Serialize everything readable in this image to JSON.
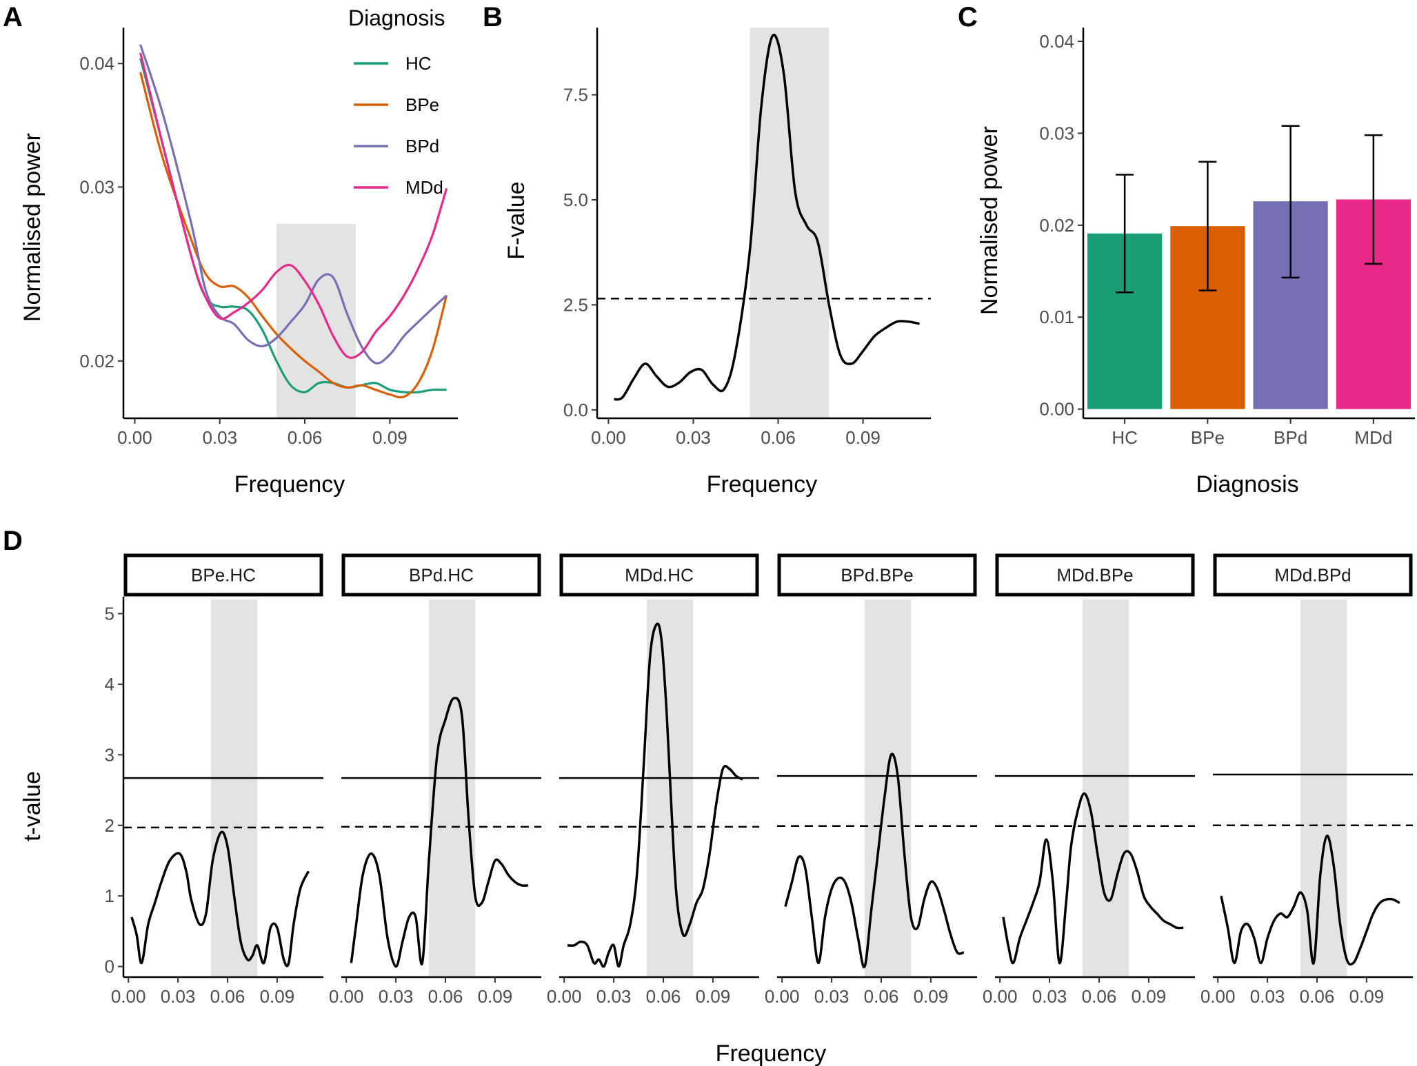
{
  "panels": {
    "A": {
      "letter": "A",
      "chart_data": {
        "type": "line",
        "xlabel": "Frequency",
        "ylabel": "Normalised power",
        "xlim": [
          -0.004,
          0.114
        ],
        "ylim": [
          0.0175,
          0.0435
        ],
        "y_scale": "log",
        "xticks": [
          0.0,
          0.03,
          0.06,
          0.09
        ],
        "xtick_labels": [
          "0.00",
          "0.03",
          "0.06",
          "0.09"
        ],
        "yticks": [
          0.02,
          0.03,
          0.04
        ],
        "ytick_labels": [
          "0.02",
          "0.03",
          "0.04"
        ],
        "highlight_band": [
          0.05,
          0.078
        ],
        "legend": {
          "title": "Diagnosis",
          "placement": "top-right"
        },
        "series": [
          {
            "name": "HC",
            "color": "#1b9e77",
            "x": [
              0.002,
              0.01,
              0.02,
              0.025,
              0.03,
              0.035,
              0.04,
              0.045,
              0.05,
              0.055,
              0.06,
              0.065,
              0.07,
              0.075,
              0.08,
              0.085,
              0.09,
              0.095,
              0.1,
              0.105,
              0.11
            ],
            "y": [
              0.0405,
              0.033,
              0.0255,
              0.0232,
              0.0227,
              0.0227,
              0.0225,
              0.0215,
              0.02,
              0.0189,
              0.0186,
              0.019,
              0.019,
              0.0188,
              0.0189,
              0.019,
              0.0187,
              0.0186,
              0.0186,
              0.0187,
              0.0187
            ]
          },
          {
            "name": "BPe",
            "color": "#d95f02",
            "x": [
              0.002,
              0.01,
              0.02,
              0.025,
              0.03,
              0.035,
              0.04,
              0.045,
              0.05,
              0.055,
              0.06,
              0.065,
              0.07,
              0.075,
              0.08,
              0.085,
              0.09,
              0.095,
              0.1,
              0.105,
              0.11
            ],
            "y": [
              0.0392,
              0.032,
              0.0265,
              0.0245,
              0.0238,
              0.0238,
              0.0232,
              0.0222,
              0.0213,
              0.0206,
              0.02,
              0.0195,
              0.019,
              0.0188,
              0.0189,
              0.0187,
              0.0185,
              0.0184,
              0.019,
              0.0205,
              0.0233
            ]
          },
          {
            "name": "BPd",
            "color": "#7570b3",
            "x": [
              0.002,
              0.01,
              0.02,
              0.025,
              0.03,
              0.035,
              0.04,
              0.045,
              0.05,
              0.055,
              0.06,
              0.065,
              0.07,
              0.075,
              0.08,
              0.085,
              0.09,
              0.095,
              0.1,
              0.105,
              0.11
            ],
            "y": [
              0.0418,
              0.0355,
              0.0275,
              0.0236,
              0.0222,
              0.0218,
              0.021,
              0.0207,
              0.0211,
              0.0219,
              0.0228,
              0.0242,
              0.0243,
              0.0223,
              0.0207,
              0.0199,
              0.0203,
              0.0212,
              0.0219,
              0.0226,
              0.0233
            ]
          },
          {
            "name": "MDd",
            "color": "#e7298a",
            "x": [
              0.002,
              0.01,
              0.02,
              0.025,
              0.03,
              0.035,
              0.04,
              0.045,
              0.05,
              0.055,
              0.06,
              0.065,
              0.07,
              0.075,
              0.08,
              0.085,
              0.09,
              0.095,
              0.1,
              0.105,
              0.11
            ],
            "y": [
              0.041,
              0.033,
              0.0255,
              0.0232,
              0.0221,
              0.0224,
              0.0229,
              0.0236,
              0.0246,
              0.025,
              0.0241,
              0.0228,
              0.0212,
              0.0202,
              0.0204,
              0.0214,
              0.0222,
              0.0233,
              0.0248,
              0.0268,
              0.0299
            ]
          }
        ]
      }
    },
    "B": {
      "letter": "B",
      "chart_data": {
        "type": "line",
        "xlabel": "Frequency",
        "ylabel": "F-value",
        "xlim": [
          -0.004,
          0.114
        ],
        "ylim": [
          -0.2,
          9.1
        ],
        "xticks": [
          0.0,
          0.03,
          0.06,
          0.09
        ],
        "xtick_labels": [
          "0.00",
          "0.03",
          "0.06",
          "0.09"
        ],
        "yticks": [
          0.0,
          2.5,
          5.0,
          7.5
        ],
        "ytick_labels": [
          "0.0",
          "2.5",
          "5.0",
          "7.5"
        ],
        "highlight_band": [
          0.05,
          0.078
        ],
        "threshold": 2.65,
        "series": [
          {
            "color": "#000000",
            "x": [
              0.002,
              0.005,
              0.009,
              0.013,
              0.017,
              0.021,
              0.025,
              0.029,
              0.033,
              0.037,
              0.041,
              0.045,
              0.05,
              0.054,
              0.058,
              0.062,
              0.066,
              0.07,
              0.074,
              0.078,
              0.082,
              0.086,
              0.09,
              0.094,
              0.098,
              0.102,
              0.106,
              0.11
            ],
            "y": [
              0.25,
              0.3,
              0.75,
              1.1,
              0.8,
              0.55,
              0.65,
              0.9,
              0.95,
              0.6,
              0.5,
              1.4,
              3.8,
              7.2,
              8.9,
              8.0,
              5.2,
              4.4,
              4.0,
              2.5,
              1.3,
              1.1,
              1.4,
              1.75,
              1.95,
              2.1,
              2.1,
              2.05
            ]
          }
        ]
      }
    },
    "C": {
      "letter": "C",
      "chart_data": {
        "type": "bar",
        "xlabel": "Diagnosis",
        "ylabel": "Normalised power",
        "categories": [
          "HC",
          "BPe",
          "BPd",
          "MDd"
        ],
        "values": [
          0.0191,
          0.0199,
          0.0226,
          0.0228
        ],
        "error_low": [
          0.0127,
          0.0129,
          0.0143,
          0.0158
        ],
        "error_high": [
          0.0255,
          0.0269,
          0.0308,
          0.0298
        ],
        "colors": [
          "#1b9e77",
          "#d95f02",
          "#7570b3",
          "#e7298a"
        ],
        "ylim": [
          -0.001,
          0.0415
        ],
        "yticks": [
          0.0,
          0.01,
          0.02,
          0.03,
          0.04
        ],
        "ytick_labels": [
          "0.00",
          "0.01",
          "0.02",
          "0.03",
          "0.04"
        ]
      }
    },
    "D": {
      "letter": "D",
      "xlabel": "Frequency",
      "ylabel": "t-value",
      "xticks": [
        0.0,
        0.03,
        0.06,
        0.09
      ],
      "xtick_labels": [
        "0.00",
        "0.03",
        "0.06",
        "0.09"
      ],
      "yticks": [
        0,
        1,
        2,
        3,
        4,
        5
      ],
      "ytick_labels": [
        "0",
        "1",
        "2",
        "3",
        "4",
        "5"
      ],
      "xlim": [
        -0.003,
        0.118
      ],
      "ylim": [
        -0.15,
        5.2
      ],
      "highlight_band": [
        0.05,
        0.078
      ],
      "chart_data": [
        {
          "type": "line",
          "facet": "BPe.HC",
          "solid_threshold": 2.67,
          "dashed_threshold": 1.97,
          "x": [
            0.002,
            0.005,
            0.008,
            0.012,
            0.016,
            0.02,
            0.025,
            0.031,
            0.035,
            0.038,
            0.043,
            0.047,
            0.051,
            0.056,
            0.06,
            0.064,
            0.068,
            0.072,
            0.075,
            0.078,
            0.082,
            0.086,
            0.09,
            0.094,
            0.097,
            0.1,
            0.104,
            0.109
          ],
          "y": [
            0.7,
            0.45,
            0.05,
            0.6,
            0.9,
            1.2,
            1.5,
            1.6,
            1.35,
            0.95,
            0.6,
            0.75,
            1.5,
            1.9,
            1.7,
            1.0,
            0.35,
            0.1,
            0.15,
            0.3,
            0.05,
            0.55,
            0.55,
            0.1,
            0.05,
            0.6,
            1.1,
            1.35
          ]
        },
        {
          "type": "line",
          "facet": "BPd.HC",
          "solid_threshold": 2.67,
          "dashed_threshold": 1.98,
          "x": [
            0.003,
            0.006,
            0.01,
            0.015,
            0.02,
            0.025,
            0.03,
            0.034,
            0.038,
            0.042,
            0.046,
            0.05,
            0.055,
            0.06,
            0.065,
            0.07,
            0.074,
            0.078,
            0.082,
            0.086,
            0.09,
            0.094,
            0.098,
            0.102,
            0.106,
            0.11
          ],
          "y": [
            0.05,
            0.6,
            1.3,
            1.6,
            1.3,
            0.4,
            0.0,
            0.35,
            0.7,
            0.7,
            0.05,
            1.5,
            3.0,
            3.5,
            3.8,
            3.55,
            2.1,
            1.0,
            0.9,
            1.2,
            1.5,
            1.45,
            1.3,
            1.2,
            1.15,
            1.15
          ]
        },
        {
          "type": "line",
          "facet": "MDd.HC",
          "solid_threshold": 2.67,
          "dashed_threshold": 1.98,
          "x": [
            0.002,
            0.006,
            0.01,
            0.014,
            0.018,
            0.021,
            0.024,
            0.027,
            0.03,
            0.033,
            0.036,
            0.04,
            0.044,
            0.048,
            0.052,
            0.056,
            0.059,
            0.062,
            0.065,
            0.068,
            0.072,
            0.076,
            0.08,
            0.084,
            0.088,
            0.092,
            0.096,
            0.1,
            0.104,
            0.108
          ],
          "y": [
            0.3,
            0.3,
            0.35,
            0.3,
            0.05,
            0.1,
            0.0,
            0.2,
            0.3,
            0.0,
            0.3,
            0.6,
            1.3,
            2.8,
            4.4,
            4.85,
            4.6,
            3.6,
            2.2,
            1.0,
            0.45,
            0.6,
            0.9,
            1.1,
            1.6,
            2.3,
            2.8,
            2.8,
            2.7,
            2.65
          ]
        },
        {
          "type": "line",
          "facet": "BPd.BPe",
          "solid_threshold": 2.7,
          "dashed_threshold": 1.99,
          "x": [
            0.002,
            0.006,
            0.01,
            0.014,
            0.018,
            0.022,
            0.026,
            0.03,
            0.034,
            0.038,
            0.042,
            0.046,
            0.05,
            0.054,
            0.058,
            0.062,
            0.066,
            0.07,
            0.074,
            0.078,
            0.082,
            0.086,
            0.09,
            0.094,
            0.098,
            0.102,
            0.106,
            0.11
          ],
          "y": [
            0.85,
            1.2,
            1.55,
            1.4,
            0.7,
            0.05,
            0.7,
            1.1,
            1.25,
            1.2,
            0.9,
            0.4,
            0.0,
            0.8,
            1.6,
            2.4,
            3.0,
            2.7,
            1.6,
            0.7,
            0.55,
            0.95,
            1.2,
            1.1,
            0.8,
            0.45,
            0.2,
            0.2
          ]
        },
        {
          "type": "line",
          "facet": "MDd.BPe",
          "solid_threshold": 2.7,
          "dashed_threshold": 1.99,
          "x": [
            0.002,
            0.005,
            0.008,
            0.012,
            0.016,
            0.02,
            0.024,
            0.028,
            0.032,
            0.036,
            0.04,
            0.043,
            0.047,
            0.051,
            0.055,
            0.059,
            0.063,
            0.067,
            0.071,
            0.075,
            0.079,
            0.083,
            0.087,
            0.091,
            0.095,
            0.099,
            0.103,
            0.107,
            0.111
          ],
          "y": [
            0.7,
            0.3,
            0.05,
            0.4,
            0.65,
            0.9,
            1.2,
            1.8,
            1.2,
            0.05,
            0.9,
            1.7,
            2.2,
            2.45,
            2.2,
            1.6,
            1.05,
            0.95,
            1.3,
            1.6,
            1.6,
            1.35,
            1.0,
            0.85,
            0.75,
            0.65,
            0.6,
            0.55,
            0.55
          ]
        },
        {
          "type": "line",
          "facet": "MDd.BPd",
          "solid_threshold": 2.72,
          "dashed_threshold": 2.0,
          "x": [
            0.002,
            0.006,
            0.01,
            0.014,
            0.018,
            0.022,
            0.026,
            0.03,
            0.034,
            0.038,
            0.042,
            0.046,
            0.05,
            0.054,
            0.058,
            0.062,
            0.066,
            0.07,
            0.074,
            0.078,
            0.082,
            0.086,
            0.09,
            0.094,
            0.098,
            0.102,
            0.106,
            0.11
          ],
          "y": [
            1.0,
            0.55,
            0.05,
            0.5,
            0.6,
            0.4,
            0.05,
            0.4,
            0.65,
            0.75,
            0.7,
            0.85,
            1.05,
            0.8,
            0.05,
            1.3,
            1.85,
            1.45,
            0.6,
            0.1,
            0.05,
            0.25,
            0.5,
            0.75,
            0.9,
            0.95,
            0.95,
            0.9
          ]
        }
      ]
    }
  }
}
